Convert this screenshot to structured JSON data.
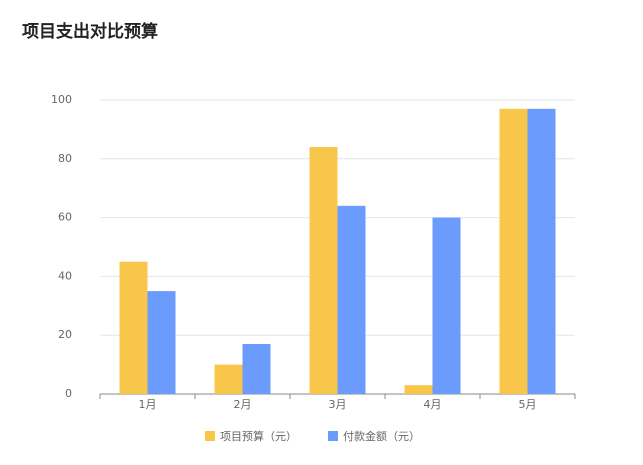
{
  "chart_data": {
    "type": "bar",
    "title": "项目支出对比预算",
    "categories": [
      "1月",
      "2月",
      "3月",
      "4月",
      "5月"
    ],
    "series": [
      {
        "name": "项目预算（元）",
        "color": "#f8c64b",
        "values": [
          45,
          10,
          84,
          3,
          97
        ]
      },
      {
        "name": "付款金额（元）",
        "color": "#6b9bfc",
        "values": [
          35,
          17,
          64,
          60,
          97
        ]
      }
    ],
    "ylim": [
      0,
      100
    ],
    "yticks": [
      0,
      20,
      40,
      60,
      80,
      100
    ],
    "grid": true,
    "legend": "bottom"
  }
}
